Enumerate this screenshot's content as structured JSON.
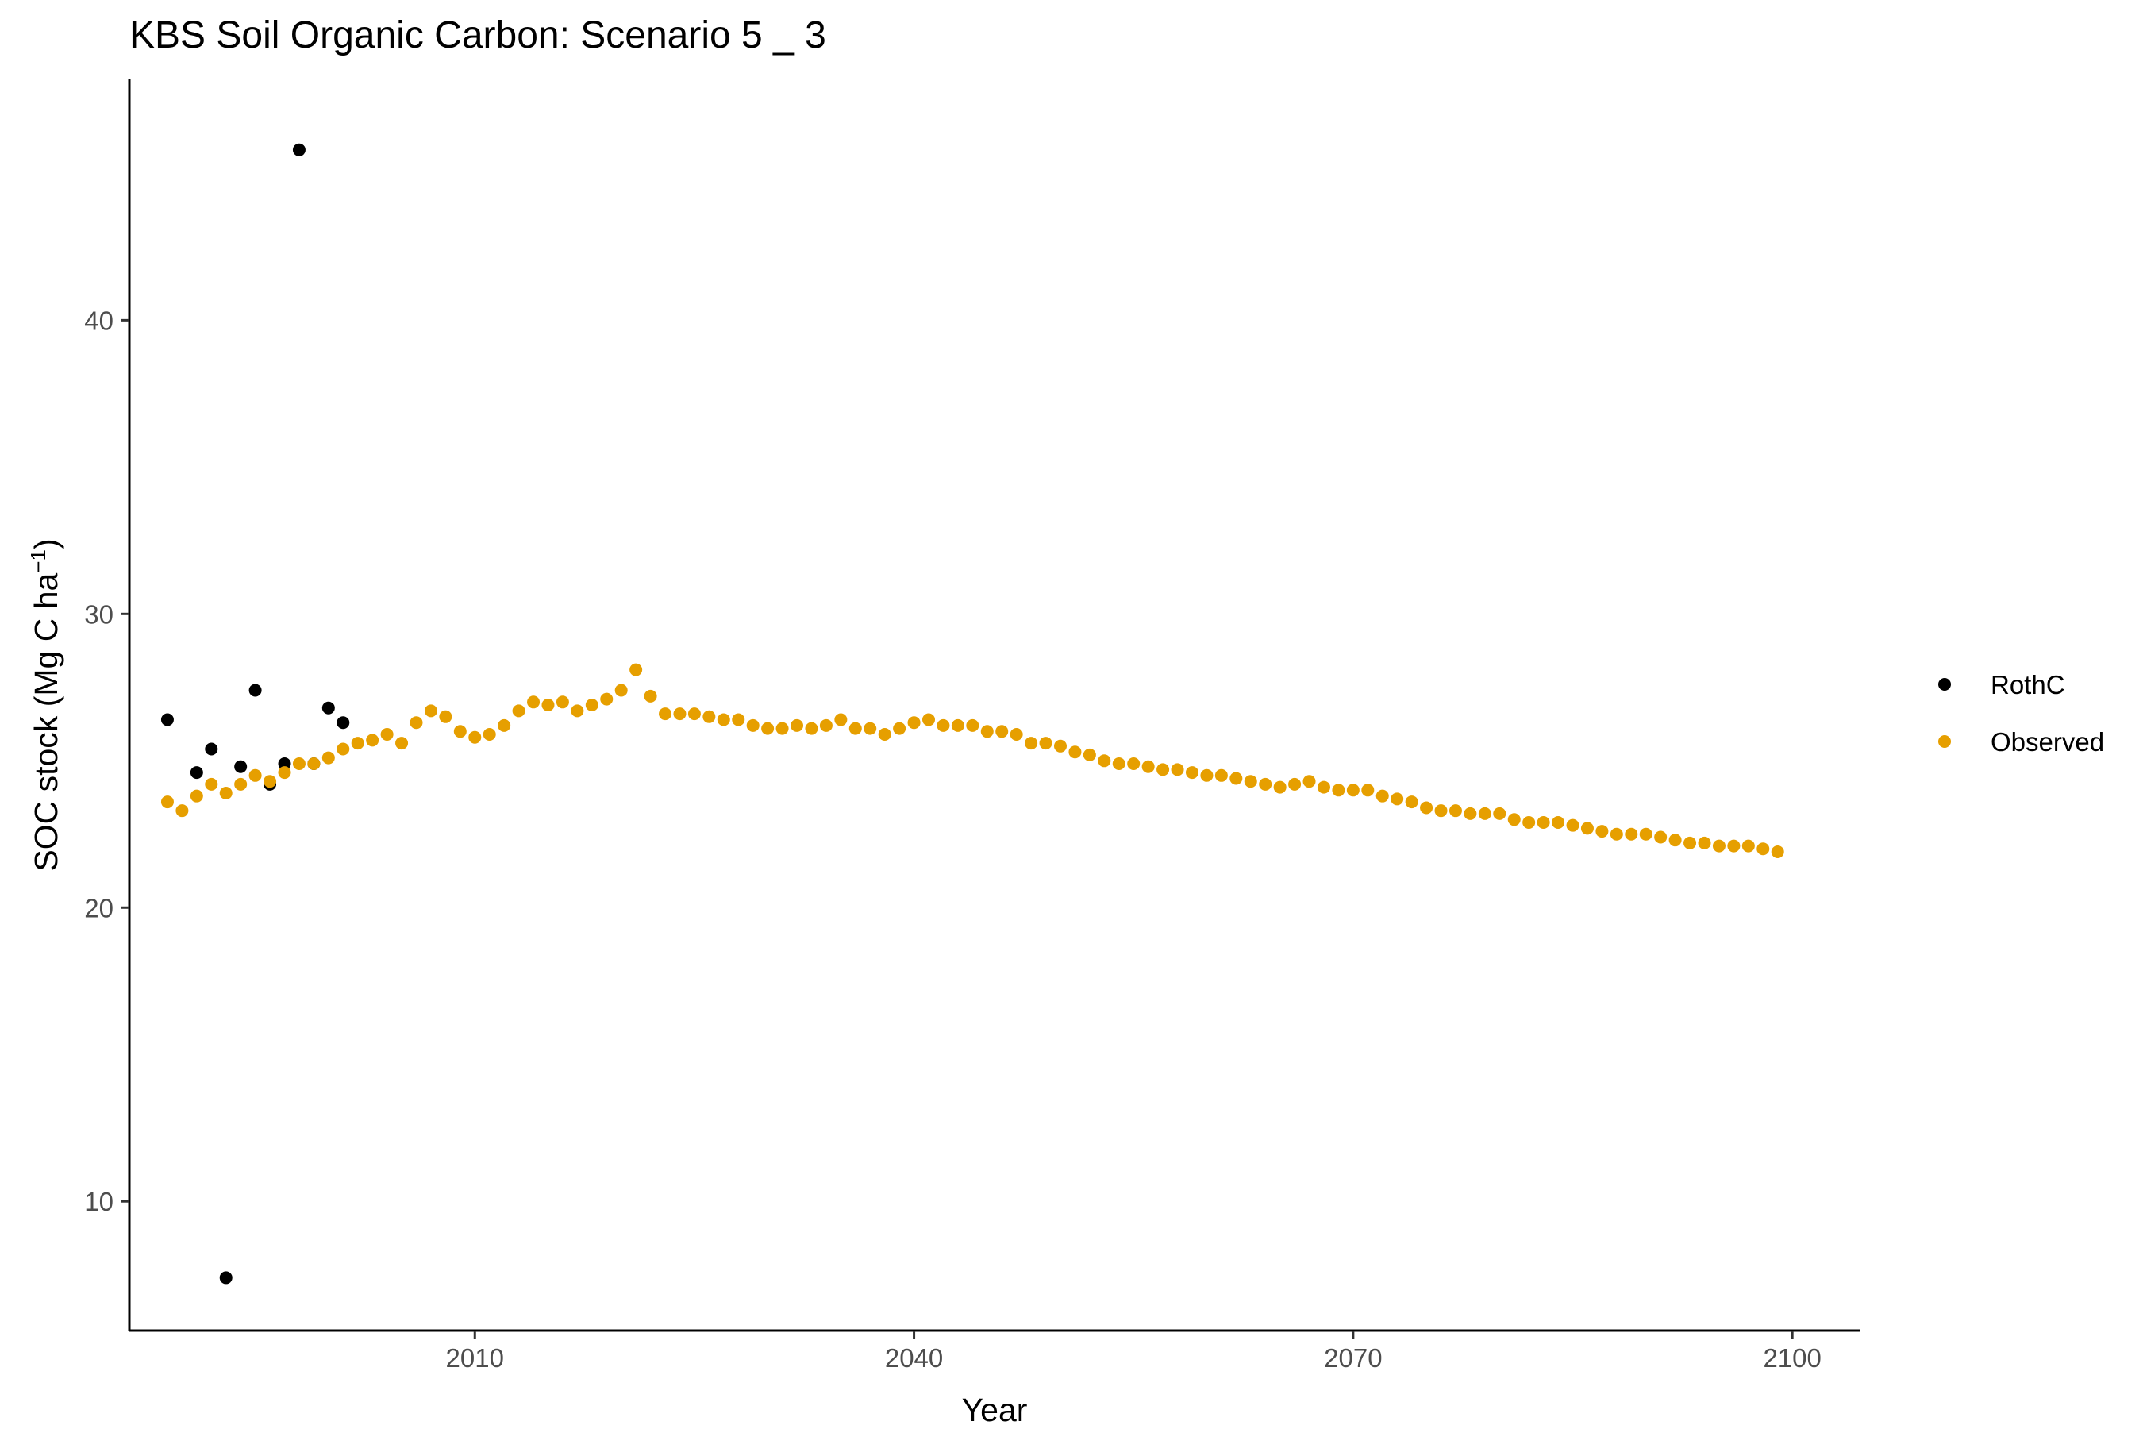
{
  "chart_data": {
    "type": "scatter",
    "title": "KBS Soil Organic Carbon: Scenario  5 _ 3",
    "xlabel": "Year",
    "ylabel_main": "SOC stock (Mg C ha",
    "ylabel_sup": "−1",
    "ylabel_close": ")",
    "xlim": [
      1986.4,
      2104.6
    ],
    "ylim": [
      5.6,
      48.2
    ],
    "xticks": [
      2010,
      2040,
      2070,
      2100
    ],
    "xtick_labels": [
      "2010",
      "2040",
      "2070",
      "2100"
    ],
    "yticks": [
      10,
      20,
      30,
      40
    ],
    "ytick_labels": [
      "10",
      "20",
      "30",
      "40"
    ],
    "grid": false,
    "legend_position": "right",
    "series": [
      {
        "name": "RothC",
        "color": "#000000",
        "points": [
          [
            1989,
            26.4
          ],
          [
            1991,
            24.6
          ],
          [
            1992,
            25.4
          ],
          [
            1993,
            7.4
          ],
          [
            1994,
            24.8
          ],
          [
            1995,
            27.4
          ],
          [
            1996,
            24.2
          ],
          [
            1997,
            24.9
          ],
          [
            1998,
            45.8
          ],
          [
            1999,
            24.9
          ],
          [
            2000,
            26.8
          ],
          [
            2001,
            26.3
          ]
        ]
      },
      {
        "name": "Observed",
        "color": "#E69F00",
        "points": [
          [
            1989,
            23.6
          ],
          [
            1990,
            23.3
          ],
          [
            1991,
            23.8
          ],
          [
            1992,
            24.2
          ],
          [
            1993,
            23.9
          ],
          [
            1994,
            24.2
          ],
          [
            1995,
            24.5
          ],
          [
            1996,
            24.3
          ],
          [
            1997,
            24.6
          ],
          [
            1998,
            24.9
          ],
          [
            1999,
            24.9
          ],
          [
            2000,
            25.1
          ],
          [
            2001,
            25.4
          ],
          [
            2002,
            25.6
          ],
          [
            2003,
            25.7
          ],
          [
            2004,
            25.9
          ],
          [
            2005,
            25.6
          ],
          [
            2006,
            26.3
          ],
          [
            2007,
            26.7
          ],
          [
            2008,
            26.5
          ],
          [
            2009,
            26.0
          ],
          [
            2010,
            25.8
          ],
          [
            2011,
            25.9
          ],
          [
            2012,
            26.2
          ],
          [
            2013,
            26.7
          ],
          [
            2014,
            27.0
          ],
          [
            2015,
            26.9
          ],
          [
            2016,
            27.0
          ],
          [
            2017,
            26.7
          ],
          [
            2018,
            26.9
          ],
          [
            2019,
            27.1
          ],
          [
            2020,
            27.4
          ],
          [
            2021,
            28.1
          ],
          [
            2022,
            27.2
          ],
          [
            2023,
            26.6
          ],
          [
            2024,
            26.6
          ],
          [
            2025,
            26.6
          ],
          [
            2026,
            26.5
          ],
          [
            2027,
            26.4
          ],
          [
            2028,
            26.4
          ],
          [
            2029,
            26.2
          ],
          [
            2030,
            26.1
          ],
          [
            2031,
            26.1
          ],
          [
            2032,
            26.2
          ],
          [
            2033,
            26.1
          ],
          [
            2034,
            26.2
          ],
          [
            2035,
            26.4
          ],
          [
            2036,
            26.1
          ],
          [
            2037,
            26.1
          ],
          [
            2038,
            25.9
          ],
          [
            2039,
            26.1
          ],
          [
            2040,
            26.3
          ],
          [
            2041,
            26.4
          ],
          [
            2042,
            26.2
          ],
          [
            2043,
            26.2
          ],
          [
            2044,
            26.2
          ],
          [
            2045,
            26.0
          ],
          [
            2046,
            26.0
          ],
          [
            2047,
            25.9
          ],
          [
            2048,
            25.6
          ],
          [
            2049,
            25.6
          ],
          [
            2050,
            25.5
          ],
          [
            2051,
            25.3
          ],
          [
            2052,
            25.2
          ],
          [
            2053,
            25.0
          ],
          [
            2054,
            24.9
          ],
          [
            2055,
            24.9
          ],
          [
            2056,
            24.8
          ],
          [
            2057,
            24.7
          ],
          [
            2058,
            24.7
          ],
          [
            2059,
            24.6
          ],
          [
            2060,
            24.5
          ],
          [
            2061,
            24.5
          ],
          [
            2062,
            24.4
          ],
          [
            2063,
            24.3
          ],
          [
            2064,
            24.2
          ],
          [
            2065,
            24.1
          ],
          [
            2066,
            24.2
          ],
          [
            2067,
            24.3
          ],
          [
            2068,
            24.1
          ],
          [
            2069,
            24.0
          ],
          [
            2070,
            24.0
          ],
          [
            2071,
            24.0
          ],
          [
            2072,
            23.8
          ],
          [
            2073,
            23.7
          ],
          [
            2074,
            23.6
          ],
          [
            2075,
            23.4
          ],
          [
            2076,
            23.3
          ],
          [
            2077,
            23.3
          ],
          [
            2078,
            23.2
          ],
          [
            2079,
            23.2
          ],
          [
            2080,
            23.2
          ],
          [
            2081,
            23.0
          ],
          [
            2082,
            22.9
          ],
          [
            2083,
            22.9
          ],
          [
            2084,
            22.9
          ],
          [
            2085,
            22.8
          ],
          [
            2086,
            22.7
          ],
          [
            2087,
            22.6
          ],
          [
            2088,
            22.5
          ],
          [
            2089,
            22.5
          ],
          [
            2090,
            22.5
          ],
          [
            2091,
            22.4
          ],
          [
            2092,
            22.3
          ],
          [
            2093,
            22.2
          ],
          [
            2094,
            22.2
          ],
          [
            2095,
            22.1
          ],
          [
            2096,
            22.1
          ],
          [
            2097,
            22.1
          ],
          [
            2098,
            22.0
          ],
          [
            2099,
            21.9
          ]
        ]
      }
    ]
  }
}
